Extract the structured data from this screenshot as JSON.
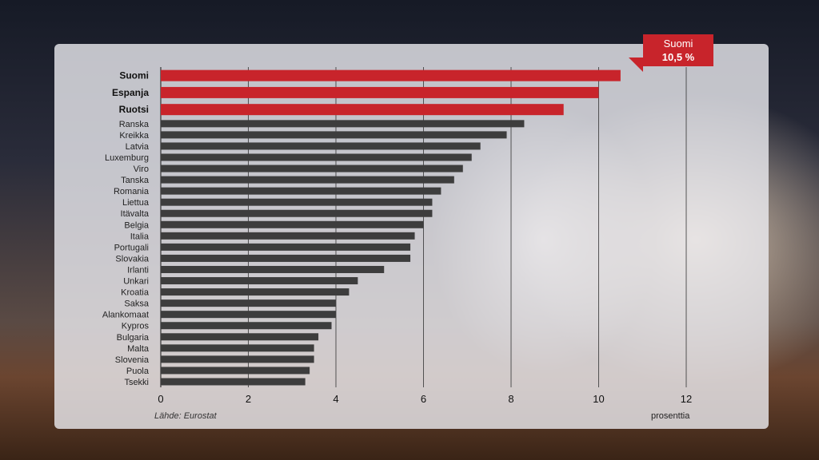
{
  "source": {
    "label": "Lähde:",
    "name": "Eurostat"
  },
  "callout": {
    "name": "Suomi",
    "value": "10,5 %"
  },
  "colors": {
    "highlight": "#c8242b",
    "default": "#3d3d3d"
  },
  "chart_data": {
    "type": "bar",
    "orientation": "horizontal",
    "categories": [
      "Suomi",
      "Espanja",
      "Ruotsi",
      "Ranska",
      "Kreikka",
      "Latvia",
      "Luxemburg",
      "Viro",
      "Tanska",
      "Romania",
      "Liettua",
      "Itävalta",
      "Belgia",
      "Italia",
      "Portugali",
      "Slovakia",
      "Irlanti",
      "Unkari",
      "Kroatia",
      "Saksa",
      "Alankomaat",
      "Kypros",
      "Bulgaria",
      "Malta",
      "Slovenia",
      "Puola",
      "Tsekki"
    ],
    "values": [
      10.5,
      10.0,
      9.2,
      8.3,
      7.9,
      7.3,
      7.1,
      6.9,
      6.7,
      6.4,
      6.2,
      6.2,
      6.0,
      5.8,
      5.7,
      5.7,
      5.1,
      4.5,
      4.3,
      4.0,
      4.0,
      3.9,
      3.6,
      3.5,
      3.5,
      3.4,
      3.3
    ],
    "highlighted": [
      "Suomi",
      "Espanja",
      "Ruotsi"
    ],
    "xlim": [
      0,
      12
    ],
    "xticks": [
      0,
      2,
      4,
      6,
      8,
      10,
      12
    ],
    "xlabel": "prosenttia",
    "grid": "vertical"
  }
}
